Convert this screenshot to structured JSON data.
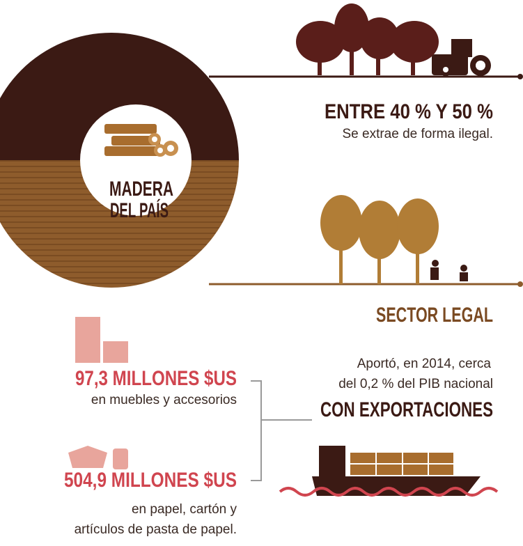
{
  "circle": {
    "label_lines": [
      "MADERA",
      "DEL PAÍS"
    ]
  },
  "illegal": {
    "headline": "ENTRE 40 % Y  50 %",
    "text": "Se extrae de forma ilegal."
  },
  "legal": {
    "headline": "SECTOR LEGAL",
    "text_lines": [
      "Aportó, en 2014, cerca",
      "del 0,2 % del PIB nacional"
    ],
    "exports": "CON EXPORTACIONES"
  },
  "products": [
    {
      "amount": "97,3 MILLONES $US",
      "text_lines": [
        "en muebles y accesorios"
      ]
    },
    {
      "amount": "504,9 MILLONES $US",
      "text_lines": [
        "en papel, cartón y",
        "artículos de pasta de papel."
      ]
    }
  ]
}
